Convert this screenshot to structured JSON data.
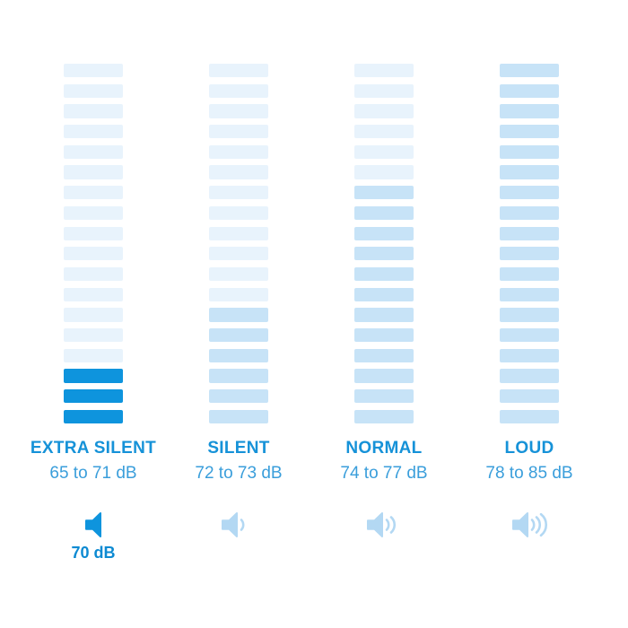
{
  "colors": {
    "page_bg": "#ffffff",
    "bar_unfilled": "#e8f3fc",
    "bar_filled": "#c7e3f7",
    "bar_active": "#0e94dd",
    "title_text": "#1692d8",
    "range_text": "#3a9edb",
    "value_text": "#0d8ad2",
    "icon_inactive": "#b3d8f3",
    "icon_active": "#0e94dd"
  },
  "columns": [
    {
      "name": "extra-silent",
      "title": "EXTRA SILENT",
      "range": "65 to 71 dB",
      "bars_total": 18,
      "bars_filled": 3,
      "fill_style": "active",
      "icon": "speaker-no-waves-icon",
      "waves": 0,
      "selected": true,
      "value": "70 dB"
    },
    {
      "name": "silent",
      "title": "SILENT",
      "range": "72 to 73 dB",
      "bars_total": 18,
      "bars_filled": 6,
      "fill_style": "filled",
      "icon": "speaker-1-wave-icon",
      "waves": 1,
      "selected": false,
      "value": ""
    },
    {
      "name": "normal",
      "title": "NORMAL",
      "range": "74 to 77 dB",
      "bars_total": 18,
      "bars_filled": 12,
      "fill_style": "filled",
      "icon": "speaker-2-waves-icon",
      "waves": 2,
      "selected": false,
      "value": ""
    },
    {
      "name": "loud",
      "title": "LOUD",
      "range": "78 to 85 dB",
      "bars_total": 18,
      "bars_filled": 18,
      "fill_style": "filled",
      "icon": "speaker-3-waves-icon",
      "waves": 3,
      "selected": false,
      "value": ""
    }
  ],
  "chart_data": {
    "type": "bar",
    "title": "",
    "categories": [
      "EXTRA SILENT",
      "SILENT",
      "NORMAL",
      "LOUD"
    ],
    "series": [
      {
        "name": "dB range min",
        "values": [
          65,
          72,
          74,
          78
        ]
      },
      {
        "name": "dB range max",
        "values": [
          71,
          73,
          77,
          85
        ]
      },
      {
        "name": "filled segments (of 18)",
        "values": [
          3,
          6,
          12,
          18
        ]
      }
    ],
    "range_labels": [
      "65 to 71 dB",
      "72 to 73 dB",
      "74 to 77 dB",
      "78 to 85 dB"
    ],
    "segments_per_column": 18,
    "selected_category": "EXTRA SILENT",
    "selected_value_label": "70 dB",
    "orientation": "vertical-segmented",
    "grid": false,
    "legend_position": "none"
  }
}
